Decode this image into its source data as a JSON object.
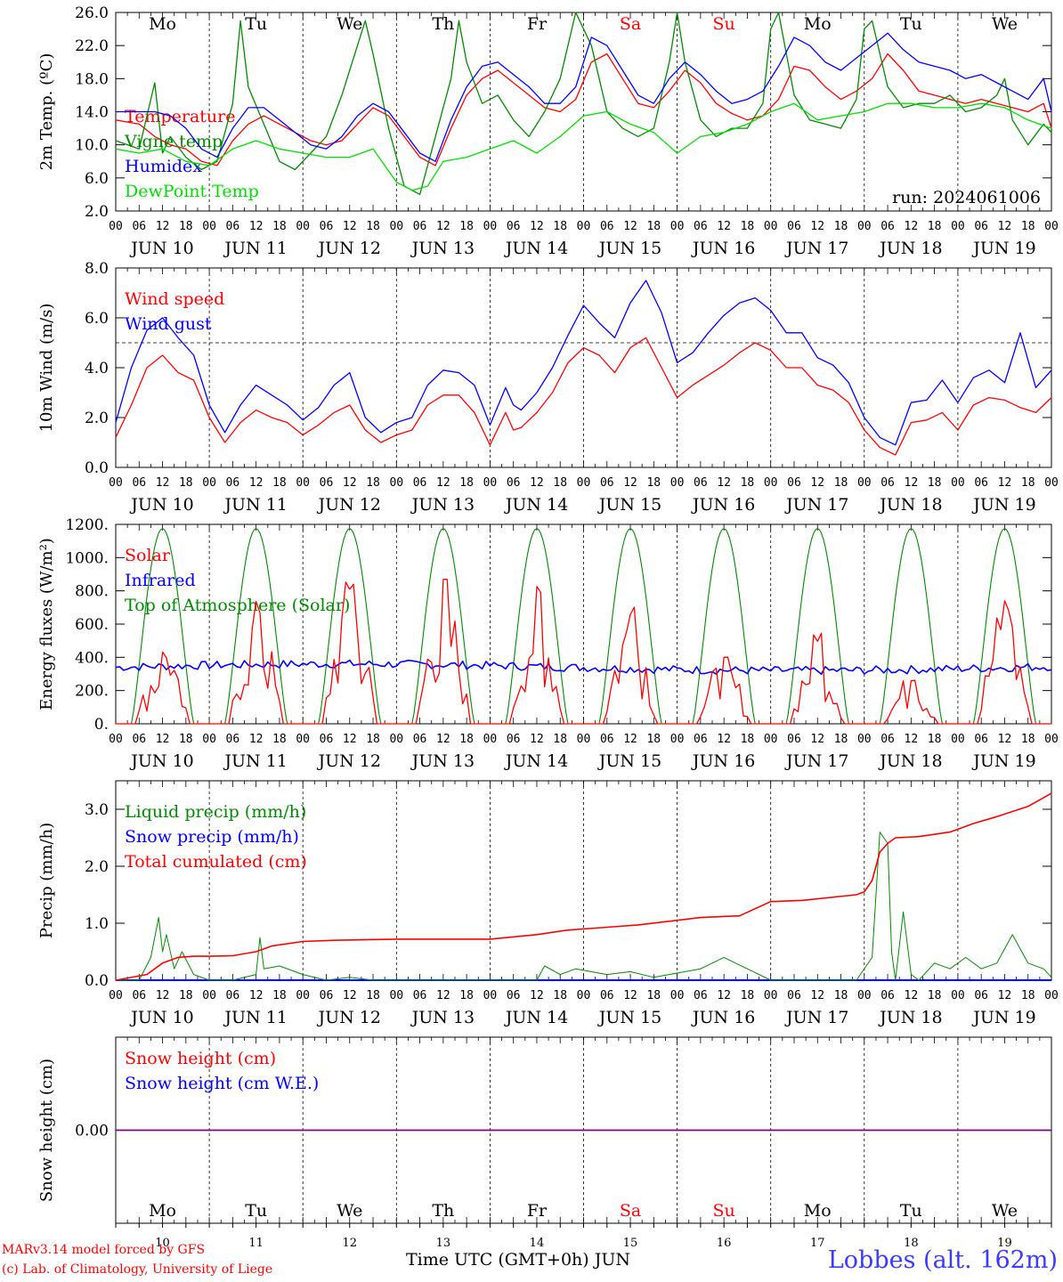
{
  "run_label": "run: 2024061006",
  "day_names": [
    "Mo",
    "Tu",
    "We",
    "Th",
    "Fr",
    "Sa",
    "Su",
    "Mo",
    "Tu",
    "We"
  ],
  "weekend_indices": [
    5,
    6
  ],
  "date_labels": [
    "JUN 10",
    "JUN 11",
    "JUN 12",
    "JUN 13",
    "JUN 14",
    "JUN 15",
    "JUN 16",
    "JUN 17",
    "JUN 18",
    "JUN 19"
  ],
  "day_numbers": [
    "10",
    "11",
    "12",
    "13",
    "14",
    "15",
    "16",
    "17",
    "18",
    "19"
  ],
  "hour_ticks": [
    "00",
    "06",
    "12",
    "18"
  ],
  "final_hour_tick": "00",
  "x_axis_title": "Time UTC (GMT+0h)",
  "x_axis_month": "JUN",
  "credit_line1": "MARv3.14 model forced by GFS",
  "credit_line2": "(c) Lab. of Climatology, University of Liege",
  "station_label": "Lobbes (alt. 162m)",
  "colors": {
    "red": "#ff0000",
    "green": "#008c00",
    "blue": "#0000ff",
    "lightgreen": "#00e000",
    "purple": "#7f007f"
  },
  "chart_data": [
    {
      "id": "temperature",
      "type": "line",
      "ylabel": "2m Temp. (ºC)",
      "ylim": [
        2,
        26
      ],
      "yticks": [
        "2.0",
        "6.0",
        "10.0",
        "14.0",
        "18.0",
        "22.0",
        "26.0"
      ],
      "x_unit": "hours since 2024-06-10 00 UTC",
      "series": [
        {
          "name": "Temperature",
          "color": "red",
          "x": [
            0,
            6,
            10,
            14,
            18,
            22,
            26,
            30,
            34,
            38,
            42,
            46,
            50,
            54,
            58,
            62,
            66,
            70,
            74,
            78,
            82,
            86,
            90,
            94,
            98,
            102,
            106,
            110,
            114,
            118,
            122,
            126,
            130,
            134,
            138,
            142,
            146,
            150,
            154,
            158,
            162,
            166,
            170,
            174,
            178,
            182,
            186,
            190,
            194,
            198,
            202,
            206,
            210,
            214,
            218,
            222,
            226,
            230,
            234,
            238,
            240
          ],
          "y": [
            13.0,
            12.5,
            11.0,
            10.0,
            9.5,
            8.0,
            7.5,
            10.5,
            12.5,
            13.5,
            12.5,
            11.5,
            10.5,
            10.0,
            10.5,
            12.5,
            14.5,
            13.5,
            11.0,
            8.5,
            7.5,
            12.0,
            16.0,
            18.0,
            19.0,
            17.5,
            16.0,
            14.5,
            14.0,
            15.5,
            20.0,
            21.0,
            18.0,
            15.0,
            14.5,
            16.5,
            19.0,
            17.5,
            15.0,
            13.8,
            13.0,
            13.5,
            15.5,
            19.5,
            19.0,
            17.0,
            15.5,
            16.5,
            18.0,
            21.0,
            19.0,
            16.5,
            16.0,
            15.5,
            15.0,
            15.5,
            15.0,
            14.5,
            14.0,
            15.0,
            12.0
          ]
        },
        {
          "name": "Vigne temp",
          "color": "green",
          "x": [
            0,
            6,
            10,
            12,
            14,
            18,
            22,
            26,
            30,
            32,
            34,
            38,
            42,
            46,
            50,
            54,
            58,
            62,
            64,
            66,
            70,
            74,
            78,
            82,
            86,
            88,
            90,
            94,
            98,
            102,
            106,
            110,
            114,
            118,
            122,
            126,
            130,
            134,
            138,
            142,
            144,
            146,
            150,
            154,
            158,
            162,
            166,
            168,
            170,
            174,
            178,
            182,
            186,
            190,
            192,
            194,
            198,
            202,
            206,
            210,
            214,
            218,
            222,
            226,
            228,
            230,
            234,
            238,
            240
          ],
          "y": [
            10.5,
            9.5,
            17.5,
            9.0,
            11.0,
            8.5,
            7.0,
            8.0,
            15.0,
            25.0,
            17.0,
            12.5,
            8.0,
            7.0,
            9.0,
            11.0,
            16.0,
            22.0,
            25.0,
            21.0,
            12.0,
            5.0,
            4.0,
            11.0,
            18.0,
            25.0,
            20.0,
            15.0,
            16.0,
            13.0,
            11.0,
            14.0,
            18.0,
            26.0,
            22.0,
            14.0,
            12.0,
            11.0,
            12.0,
            20.0,
            26.0,
            20.0,
            13.0,
            11.0,
            12.0,
            12.0,
            15.0,
            24.0,
            26.0,
            16.0,
            13.0,
            12.5,
            12.0,
            15.5,
            24.0,
            25.0,
            17.0,
            14.5,
            15.0,
            15.0,
            16.0,
            14.0,
            14.5,
            16.0,
            18.0,
            13.0,
            10.0,
            12.5,
            11.5
          ]
        },
        {
          "name": "Humidex",
          "color": "blue",
          "x": [
            0,
            6,
            10,
            14,
            18,
            22,
            26,
            30,
            34,
            38,
            42,
            46,
            50,
            54,
            58,
            62,
            66,
            70,
            74,
            78,
            82,
            86,
            90,
            94,
            98,
            102,
            106,
            110,
            114,
            118,
            122,
            126,
            130,
            134,
            138,
            142,
            146,
            150,
            154,
            158,
            162,
            166,
            170,
            174,
            178,
            182,
            186,
            190,
            194,
            198,
            202,
            206,
            210,
            214,
            218,
            222,
            226,
            230,
            234,
            238,
            240
          ],
          "y": [
            14.0,
            14.0,
            14.0,
            13.5,
            12.0,
            9.5,
            8.5,
            12.0,
            14.5,
            14.5,
            13.0,
            11.5,
            10.0,
            9.5,
            11.0,
            13.5,
            15.0,
            14.0,
            11.5,
            9.0,
            8.0,
            13.0,
            17.0,
            19.5,
            20.0,
            18.5,
            17.0,
            15.0,
            15.0,
            17.0,
            23.0,
            22.0,
            19.0,
            16.0,
            15.0,
            18.0,
            20.0,
            18.5,
            16.5,
            15.0,
            15.5,
            16.5,
            19.5,
            23.0,
            22.0,
            20.0,
            19.0,
            20.5,
            22.0,
            23.5,
            21.5,
            20.0,
            19.5,
            19.0,
            18.0,
            18.5,
            17.5,
            16.5,
            15.5,
            18.0,
            14.0
          ]
        },
        {
          "name": "DewPoint Temp",
          "color": "lightgreen",
          "x": [
            0,
            6,
            12,
            18,
            24,
            30,
            36,
            42,
            48,
            54,
            60,
            66,
            72,
            76,
            80,
            84,
            90,
            96,
            102,
            108,
            114,
            120,
            126,
            132,
            138,
            144,
            150,
            156,
            162,
            168,
            174,
            180,
            186,
            192,
            198,
            204,
            210,
            216,
            222,
            228,
            234,
            240
          ],
          "y": [
            9.5,
            9.0,
            9.5,
            8.0,
            7.5,
            9.5,
            10.5,
            9.5,
            9.0,
            8.5,
            8.5,
            9.5,
            5.5,
            4.5,
            5.0,
            8.0,
            8.5,
            9.5,
            10.5,
            9.0,
            11.0,
            13.5,
            14.0,
            12.5,
            11.5,
            9.0,
            11.0,
            11.5,
            12.5,
            14.0,
            15.0,
            13.0,
            13.5,
            14.0,
            15.0,
            15.0,
            14.5,
            14.5,
            15.0,
            14.5,
            13.0,
            12.0
          ]
        }
      ]
    },
    {
      "id": "wind",
      "type": "line",
      "ylabel": "10m Wind (m/s)",
      "ylim": [
        0,
        8
      ],
      "yticks": [
        "0.0",
        "2.0",
        "4.0",
        "6.0",
        "8.0"
      ],
      "reference_line": 5,
      "series": [
        {
          "name": "Wind speed",
          "color": "red",
          "x": [
            0,
            4,
            8,
            12,
            16,
            20,
            24,
            28,
            32,
            36,
            40,
            44,
            48,
            52,
            56,
            60,
            64,
            68,
            72,
            76,
            80,
            84,
            88,
            92,
            96,
            100,
            102,
            104,
            108,
            112,
            116,
            120,
            124,
            128,
            132,
            136,
            140,
            144,
            148,
            152,
            156,
            160,
            164,
            168,
            172,
            176,
            180,
            184,
            188,
            192,
            196,
            200,
            204,
            208,
            212,
            216,
            220,
            224,
            228,
            232,
            236,
            240
          ],
          "y": [
            1.2,
            2.5,
            4.0,
            4.5,
            3.8,
            3.5,
            2.0,
            1.0,
            1.8,
            2.3,
            2.0,
            1.8,
            1.3,
            1.7,
            2.2,
            2.5,
            1.5,
            1.0,
            1.3,
            1.5,
            2.5,
            2.9,
            2.9,
            2.2,
            0.9,
            2.2,
            1.5,
            1.6,
            2.2,
            3.0,
            4.2,
            4.8,
            4.5,
            3.8,
            4.8,
            5.2,
            4.0,
            2.8,
            3.3,
            3.7,
            4.1,
            4.6,
            5.0,
            4.7,
            4.0,
            4.0,
            3.3,
            3.1,
            2.6,
            1.5,
            0.8,
            0.5,
            1.8,
            1.9,
            2.2,
            1.5,
            2.5,
            2.8,
            2.7,
            2.4,
            2.2,
            2.8
          ]
        },
        {
          "name": "Wind gust",
          "color": "blue",
          "x": [
            0,
            4,
            8,
            12,
            16,
            20,
            24,
            28,
            32,
            36,
            40,
            44,
            48,
            52,
            56,
            60,
            64,
            68,
            72,
            76,
            80,
            84,
            88,
            92,
            96,
            100,
            102,
            104,
            108,
            112,
            116,
            120,
            124,
            128,
            132,
            136,
            140,
            144,
            148,
            152,
            156,
            160,
            164,
            168,
            172,
            176,
            180,
            184,
            188,
            192,
            196,
            200,
            204,
            208,
            212,
            216,
            220,
            224,
            228,
            232,
            236,
            240
          ],
          "y": [
            1.8,
            4.0,
            5.5,
            6.0,
            5.2,
            4.5,
            2.5,
            1.4,
            2.5,
            3.3,
            2.9,
            2.5,
            1.9,
            2.4,
            3.3,
            3.8,
            2.0,
            1.4,
            1.8,
            2.0,
            3.3,
            3.9,
            3.8,
            3.3,
            1.7,
            3.2,
            2.5,
            2.3,
            3.0,
            4.0,
            5.3,
            6.5,
            5.8,
            5.2,
            6.6,
            7.5,
            6.2,
            4.2,
            4.6,
            5.4,
            6.1,
            6.6,
            6.8,
            6.3,
            5.4,
            5.4,
            4.4,
            4.1,
            3.4,
            2.0,
            1.2,
            0.9,
            2.6,
            2.7,
            3.5,
            2.6,
            3.6,
            3.9,
            3.4,
            5.4,
            3.2,
            3.9
          ]
        }
      ]
    },
    {
      "id": "energy",
      "type": "line",
      "ylabel": "Energy fluxes (W/m²)",
      "ylim": [
        0,
        1200
      ],
      "yticks": [
        "0.",
        "200.",
        "400.",
        "600.",
        "800.",
        "1000.",
        "1200."
      ],
      "series": [
        {
          "name": "Solar",
          "color": "red",
          "day_peaks": [
            450,
            740,
            900,
            880,
            850,
            760,
            410,
            570,
            300,
            770
          ]
        },
        {
          "name": "Infrared",
          "color": "blue",
          "mean": 340
        },
        {
          "name": "Top of Atmosphere (Solar)",
          "color": "green",
          "peak": 1175
        }
      ]
    },
    {
      "id": "precip",
      "type": "line",
      "ylabel": "Precip (mm/h)",
      "ylim": [
        0,
        3.5
      ],
      "yticks": [
        "0.0",
        "1.0",
        "2.0",
        "3.0"
      ],
      "series": [
        {
          "name": "Liquid precip (mm/h)",
          "color": "green",
          "x": [
            0,
            6,
            9,
            11,
            12,
            13,
            15,
            17,
            20,
            24,
            30,
            36,
            37,
            38,
            42,
            48,
            54,
            60,
            66,
            72,
            96,
            108,
            110,
            114,
            118,
            126,
            132,
            138,
            150,
            156,
            162,
            168,
            174,
            176,
            184,
            190,
            194,
            196,
            198,
            199,
            200,
            202,
            204,
            206,
            210,
            214,
            218,
            222,
            226,
            230,
            234,
            238,
            240
          ],
          "y": [
            0,
            0,
            0.4,
            1.1,
            0.5,
            0.8,
            0.2,
            0.5,
            0.1,
            0,
            0,
            0.1,
            0.75,
            0.2,
            0.25,
            0.1,
            0,
            0.05,
            0,
            0,
            0,
            0,
            0.25,
            0.1,
            0.2,
            0.1,
            0.15,
            0.05,
            0.2,
            0.4,
            0.2,
            0,
            0,
            0,
            0,
            0,
            0.4,
            2.6,
            2.4,
            0.5,
            0,
            1.2,
            0.1,
            0,
            0.3,
            0.2,
            0.4,
            0.2,
            0.3,
            0.8,
            0.3,
            0.2,
            0.05
          ]
        },
        {
          "name": "Snow precip (mm/h)",
          "color": "blue",
          "constant": 0
        },
        {
          "name": "Total cumulated (cm)",
          "color": "red",
          "x": [
            0,
            8,
            12,
            16,
            20,
            24,
            30,
            36,
            40,
            48,
            56,
            72,
            96,
            108,
            116,
            126,
            134,
            150,
            160,
            168,
            176,
            190,
            192,
            194,
            196,
            198,
            200,
            206,
            214,
            220,
            226,
            234,
            240
          ],
          "y": [
            0,
            0.1,
            0.3,
            0.4,
            0.42,
            0.42,
            0.43,
            0.5,
            0.6,
            0.68,
            0.7,
            0.72,
            0.72,
            0.8,
            0.88,
            0.93,
            0.97,
            1.1,
            1.13,
            1.38,
            1.4,
            1.5,
            1.55,
            1.75,
            2.25,
            2.4,
            2.5,
            2.52,
            2.6,
            2.75,
            2.87,
            3.05,
            3.28
          ]
        }
      ]
    },
    {
      "id": "snow",
      "type": "line",
      "ylabel": "Snow height (cm)",
      "ylim": [
        -1,
        1
      ],
      "yticks": [
        "0.00"
      ],
      "series": [
        {
          "name": "Snow height (cm)",
          "color": "red",
          "constant": 0
        },
        {
          "name": "Snow height (cm W.E.)",
          "color": "blue",
          "constant": 0
        }
      ]
    }
  ]
}
